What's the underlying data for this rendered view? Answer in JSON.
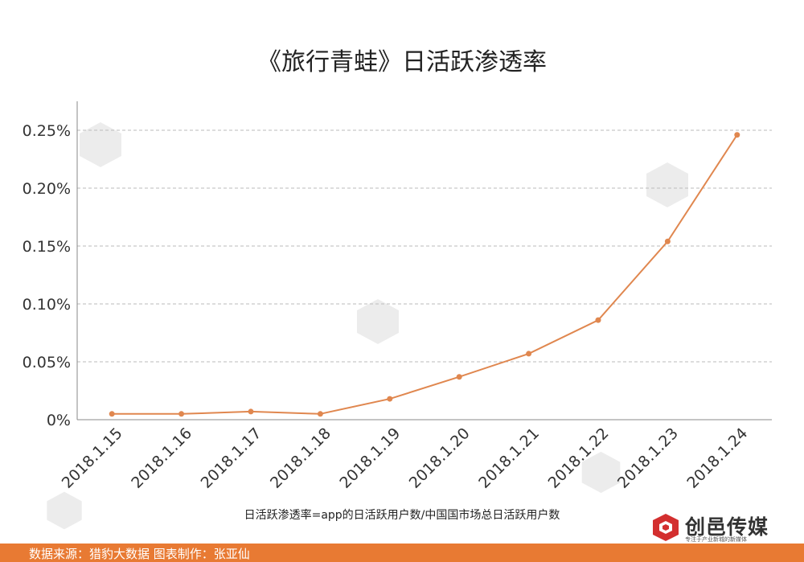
{
  "title": "《旅行青蛙》日活跃渗透率",
  "footnote": "日活跃渗透率=app的日活跃用户数/中国国市场总日活跃用户数",
  "source": "数据来源：猎豹大数据   图表制作：张亚仙",
  "brand": {
    "name": "创邑传媒",
    "slogan": "专注于产业新城的新媒体"
  },
  "colors": {
    "line": "#e0874f",
    "accent": "#e87a33",
    "grid": "#bbbbbb",
    "axis": "#888888",
    "logo_red": "#d32f2f"
  },
  "chart_data": {
    "type": "line",
    "title": "《旅行青蛙》日活跃渗透率",
    "xlabel": "",
    "ylabel": "",
    "categories": [
      "2018.1.15",
      "2018.1.16",
      "2018.1.17",
      "2018.1.18",
      "2018.1.19",
      "2018.1.20",
      "2018.1.21",
      "2018.1.22",
      "2018.1.23",
      "2018.1.24"
    ],
    "series": [
      {
        "values": [
          0.005,
          0.005,
          0.007,
          0.005,
          0.018,
          0.037,
          0.057,
          0.086,
          0.154,
          0.246
        ]
      }
    ],
    "ylim": [
      0,
      0.25
    ],
    "yticks": [
      0,
      0.05,
      0.1,
      0.15,
      0.2,
      0.25
    ],
    "ytick_labels": [
      "0%",
      "0.05%",
      "0.10%",
      "0.15%",
      "0.20%",
      "0.25%"
    ],
    "unit": "%",
    "grid": true,
    "legend": "none"
  }
}
